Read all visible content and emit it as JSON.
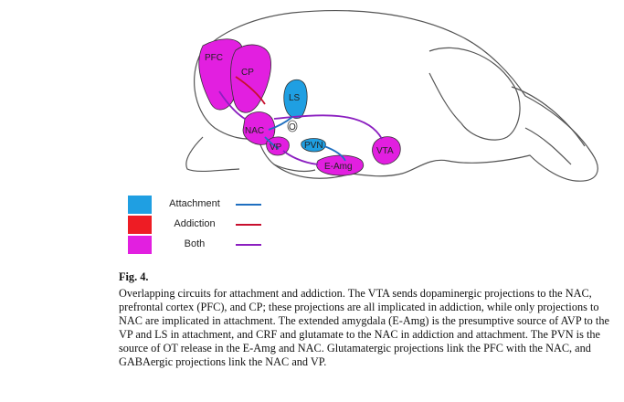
{
  "colors": {
    "attachment": "#1f9fe2",
    "addiction": "#ee1c24",
    "both": "#e21fe0",
    "attachment_line": "#1f6fc0",
    "addiction_line": "#c8102e",
    "both_line": "#8b1fc0",
    "outline": "#555555"
  },
  "regions": {
    "pfc": "PFC",
    "cp": "CP",
    "ls": "LS",
    "nac": "NAC",
    "vp": "VP",
    "pvn": "PVN",
    "vta": "VTA",
    "eamg": "E-Amg",
    "nac_small": "O"
  },
  "legend": [
    {
      "label": "Attachment",
      "key": "attachment"
    },
    {
      "label": "Addiction",
      "key": "addiction"
    },
    {
      "label": "Both",
      "key": "both"
    }
  ],
  "caption": {
    "heading": "Fig. 4.",
    "text": "Overlapping circuits for attachment and addiction. The VTA sends dopaminergic projections to the NAC, prefrontal cortex (PFC), and CP; these projections are all implicated in addiction, while only projections to NAC are implicated in attachment. The extended amygdala (E-Amg) is the presumptive source of AVP to the VP and LS in attachment, and CRF and glutamate to the NAC in addiction and attachment. The PVN is the source of OT release in the E-Amg and NAC. Glutamatergic projections link the PFC with the NAC, and GABAergic projections link the NAC and VP."
  }
}
